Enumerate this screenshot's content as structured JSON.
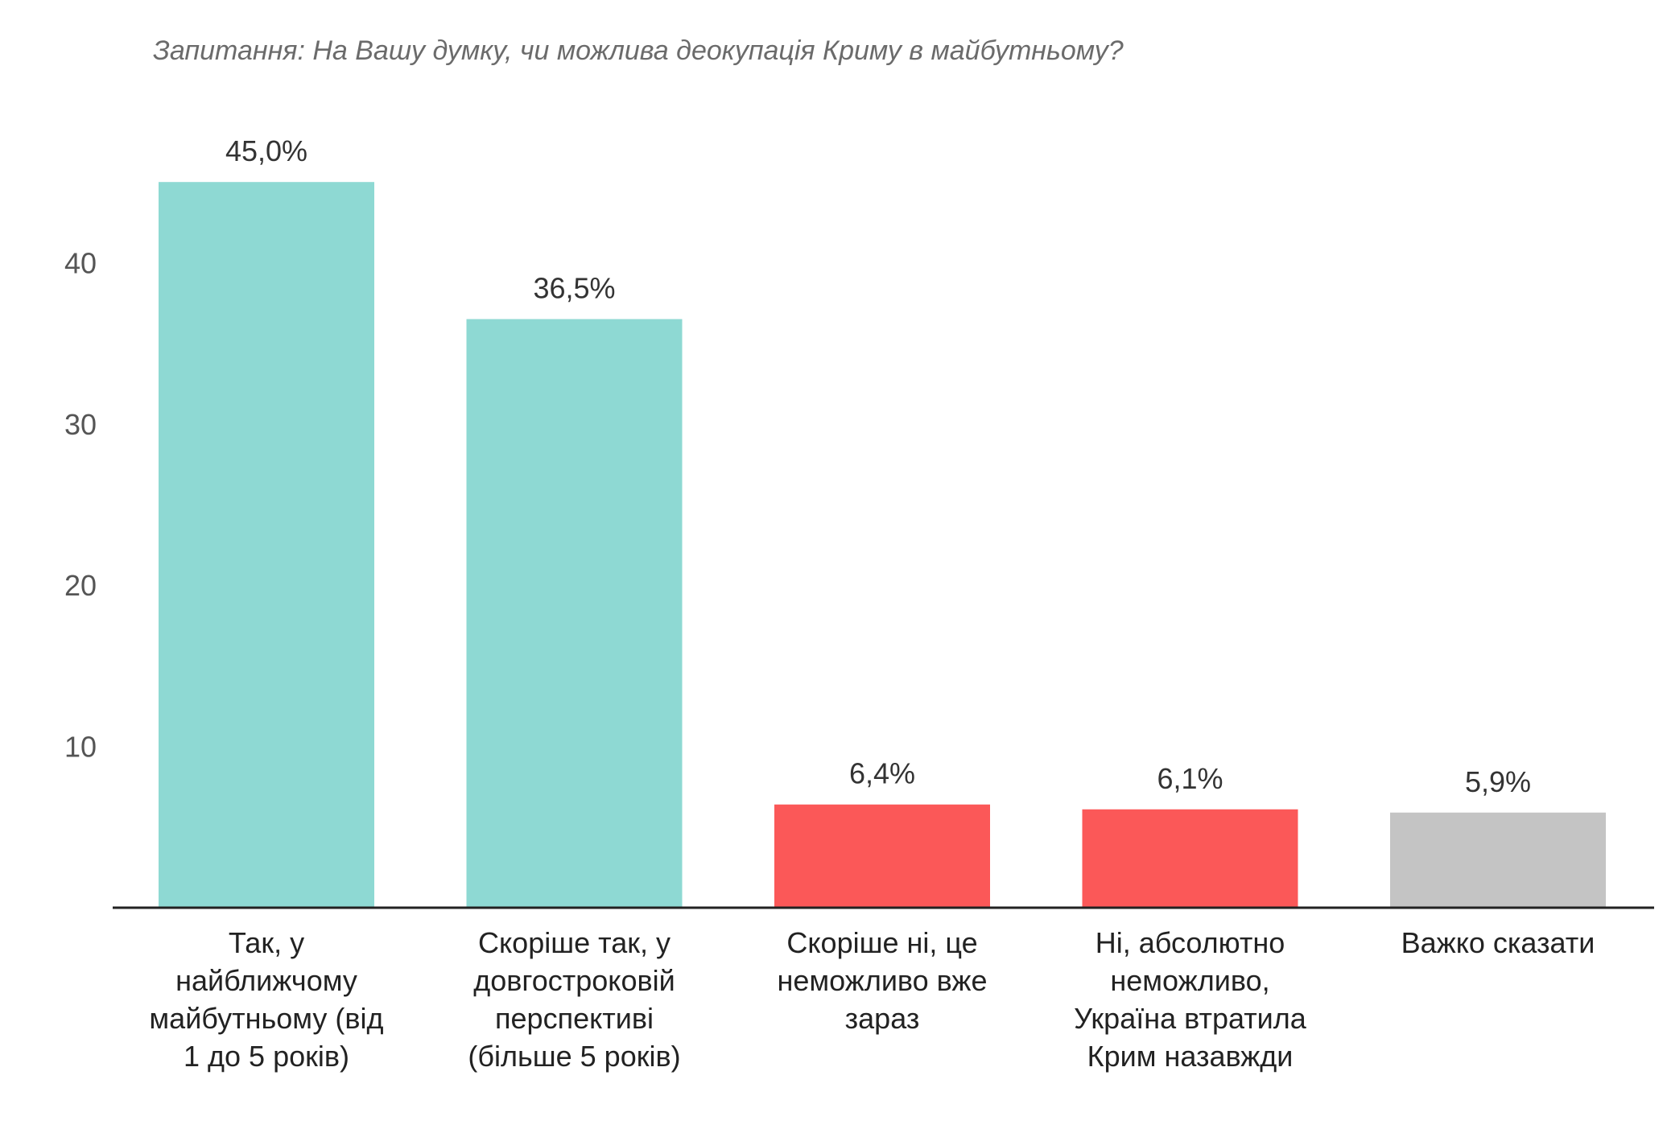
{
  "chart_data": {
    "type": "bar",
    "title": "Запитання: На Вашу думку, чи можлива деокупація Криму в майбутньому?",
    "categories": [
      "Так, у найближчому майбутньому (від 1 до 5 років)",
      "Скоріше так, у довгостроковій перспективі (більше 5 років)",
      "Скоріше ні, це неможливо вже зараз",
      "Ні, абсолютно неможливо, Україна втратила Крим назавжди",
      "Важко сказати"
    ],
    "category_lines": [
      "Так, у\nнайближчому\nмайбутньому (від\n1 до 5 років)",
      "Скоріше так, у\nдовгостроковій\nперспективі\n(більше 5 років)",
      "Скоріше ні, це\nнеможливо вже\nзараз",
      "Ні, абсолютно\nнеможливо,\nУкраїна втратила\nКрим назавжди",
      "Важко сказати"
    ],
    "values": [
      45.0,
      36.5,
      6.4,
      6.1,
      5.9
    ],
    "value_labels": [
      "45,0%",
      "36,5%",
      "6,4%",
      "6,1%",
      "5,9%"
    ],
    "colors": [
      "#8ed9d3",
      "#8ed9d3",
      "#fb5858",
      "#fb5858",
      "#c4c4c4"
    ],
    "yticks": [
      10,
      20,
      30,
      40
    ],
    "ylim": [
      0,
      45
    ],
    "xlabel": "",
    "ylabel": "",
    "grid": false,
    "legend": "none"
  }
}
